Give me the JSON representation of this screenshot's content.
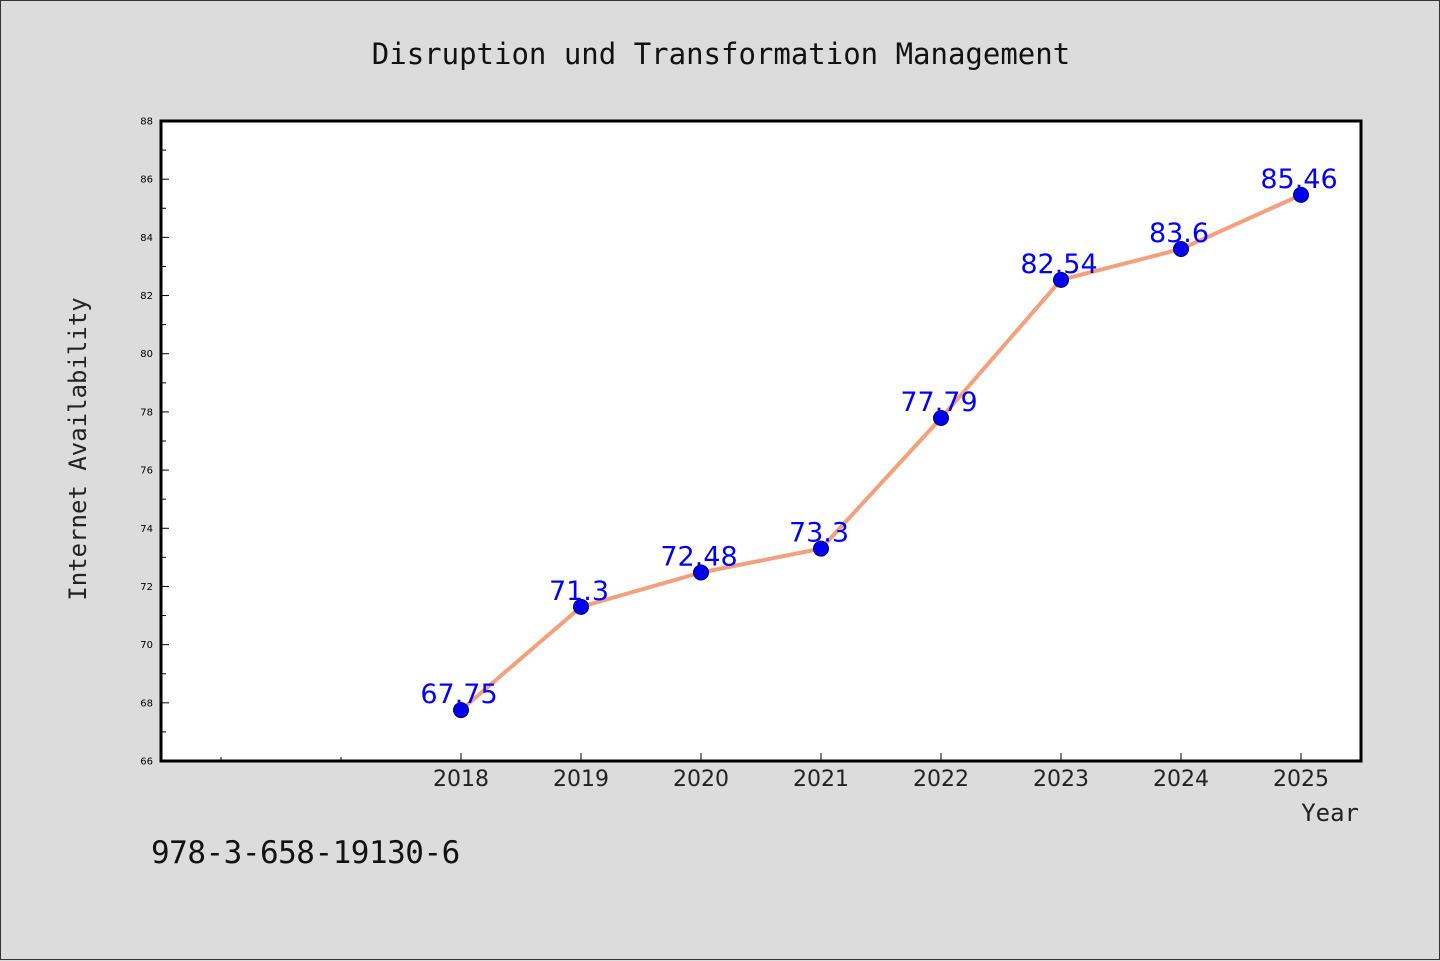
{
  "chart_data": {
    "type": "line",
    "title": "Disruption und Transformation Management",
    "xlabel": "Year",
    "ylabel": "Internet Availability",
    "categories": [
      "2018",
      "2019",
      "2020",
      "2021",
      "2022",
      "2023",
      "2024",
      "2025"
    ],
    "series": [
      {
        "values": [
          67.75,
          71.3,
          72.48,
          73.3,
          77.79,
          82.54,
          83.6,
          85.46
        ]
      }
    ],
    "data_labels": [
      "67.75",
      "71.3",
      "72.48",
      "73.3",
      "77.79",
      "82.54",
      "83.6",
      "85.46"
    ],
    "ylim": [
      66,
      88
    ],
    "yticks": [
      66,
      68,
      70,
      72,
      74,
      76,
      78,
      80,
      82,
      84,
      86,
      88
    ],
    "grid": false,
    "colors": {
      "line": "#f4a07e",
      "marker": "#0000ee",
      "marker_edge": "#000066",
      "label": "#0000ff"
    }
  },
  "footer": {
    "isbn": "978-3-658-19130-6"
  }
}
